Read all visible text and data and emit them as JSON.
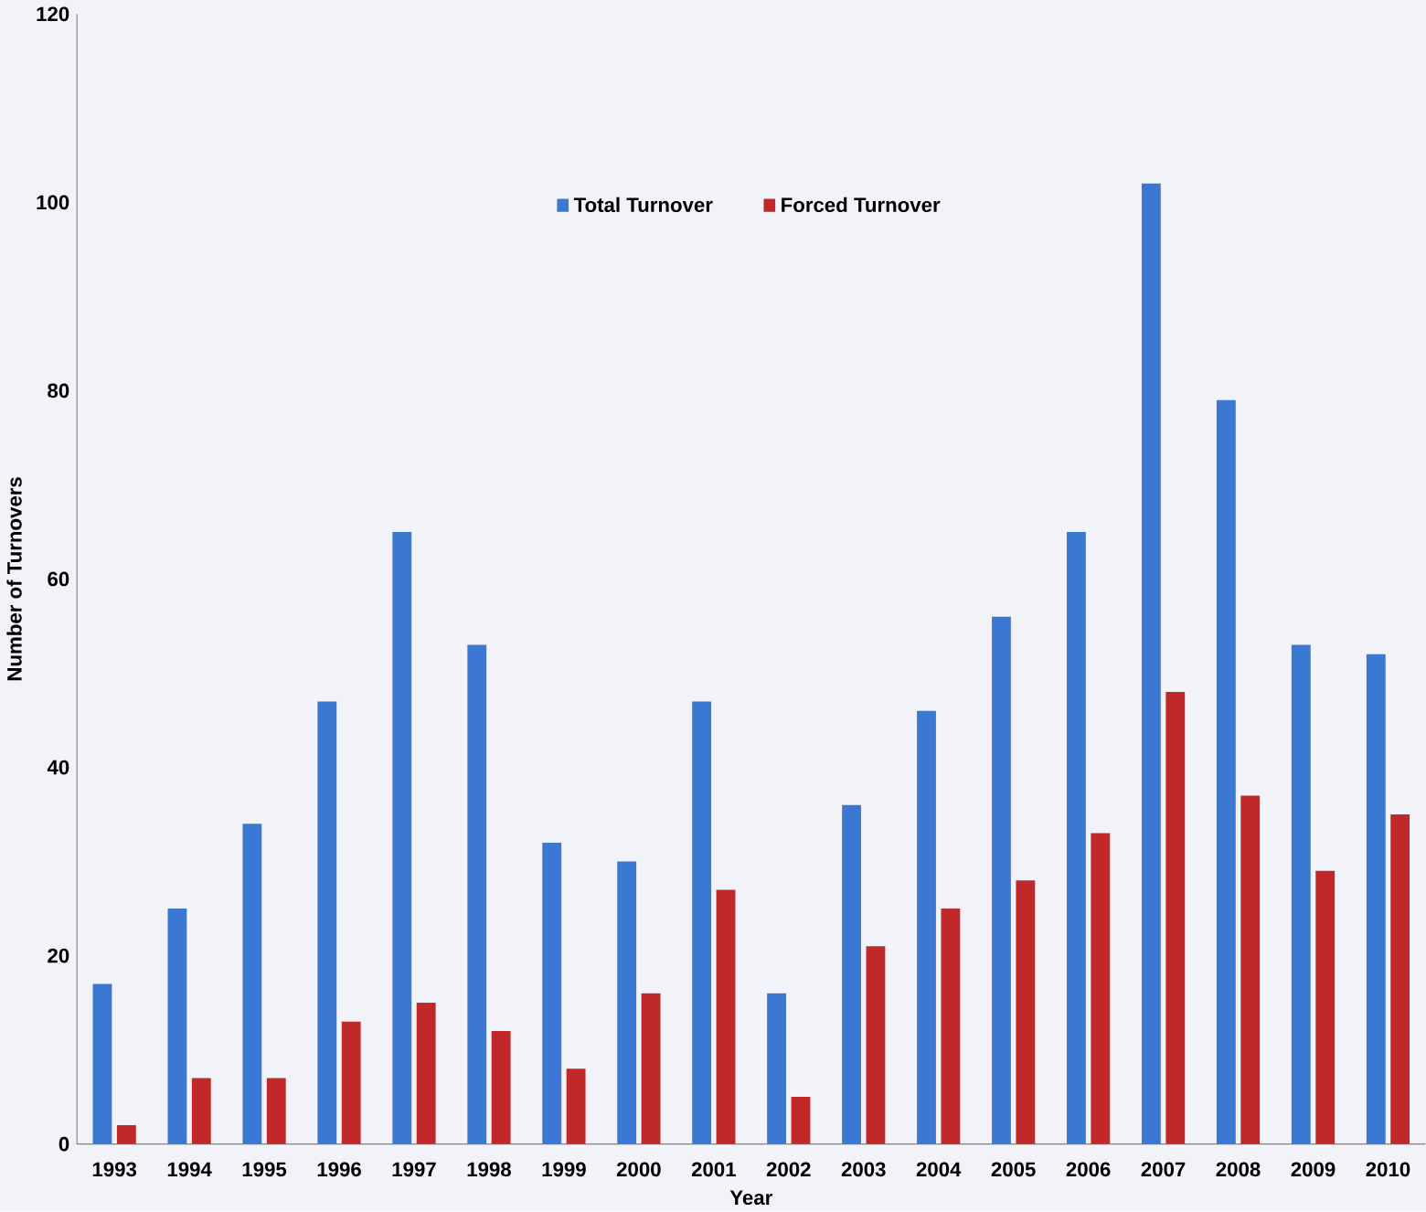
{
  "chart_data": {
    "type": "bar",
    "xlabel": "Year",
    "ylabel": "Number of Turnovers",
    "categories": [
      "1993",
      "1994",
      "1995",
      "1996",
      "1997",
      "1998",
      "1999",
      "2000",
      "2001",
      "2002",
      "2003",
      "2004",
      "2005",
      "2006",
      "2007",
      "2008",
      "2009",
      "2010"
    ],
    "series": [
      {
        "name": "Total Turnover",
        "color": "#3a78d4",
        "values": [
          17,
          25,
          34,
          47,
          65,
          53,
          32,
          30,
          47,
          16,
          36,
          46,
          56,
          65,
          102,
          79,
          53,
          52
        ]
      },
      {
        "name": "Forced Turnover",
        "color": "#c0282a",
        "values": [
          2,
          7,
          7,
          13,
          15,
          12,
          8,
          16,
          27,
          5,
          21,
          25,
          28,
          33,
          48,
          37,
          29,
          35
        ]
      }
    ],
    "ylim": [
      0,
      120
    ],
    "yticks": [
      0,
      20,
      40,
      60,
      80,
      100,
      120
    ],
    "grid": false,
    "legend": "top"
  }
}
